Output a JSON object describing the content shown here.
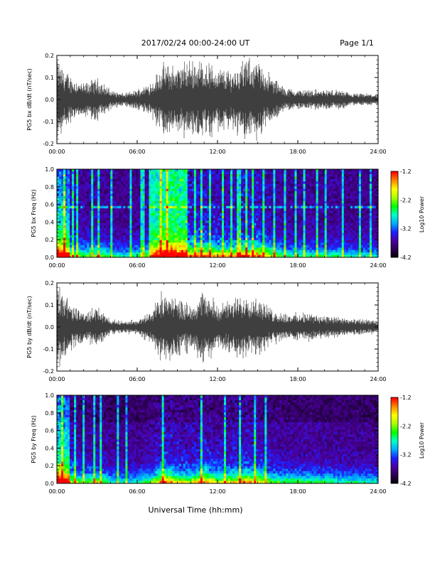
{
  "header": {
    "title": "2017/02/24  00:00-24:00 UT",
    "page": "Page 1/1"
  },
  "footer": {
    "xlabel": "Universal Time (hh:mm)"
  },
  "colorbar": {
    "title": "Log10 Power",
    "ticks": [
      "-1.2",
      "-2.2",
      "-3.2",
      "-4.2"
    ],
    "range": [
      -4.2,
      -1.2
    ],
    "colors": [
      "#000000",
      "#2a0050",
      "#4b00a0",
      "#1e1eff",
      "#00aaff",
      "#00ffc8",
      "#00ff00",
      "#aaff00",
      "#ffff00",
      "#ff8800",
      "#ff0000"
    ]
  },
  "chart_data": [
    {
      "type": "line",
      "ylabel": "PG5 bx dB/dt (nT/sec)",
      "x_ticks": [
        "00:00",
        "06:00",
        "12:00",
        "18:00",
        "24:00"
      ],
      "xlim": [
        0,
        24
      ],
      "ylim": [
        -0.2,
        0.2
      ],
      "y_ticks": [
        "0.2",
        "0.1",
        "0.0",
        "-0.1",
        "-0.2"
      ],
      "series": [
        {
          "x": [
            0,
            1,
            2,
            3,
            4,
            5,
            6,
            7,
            8,
            9,
            10,
            11,
            12,
            13,
            14,
            15,
            16,
            17,
            18,
            19,
            20,
            21,
            22,
            23,
            24
          ],
          "values": [
            0.2,
            0.12,
            0.08,
            0.11,
            0.05,
            0.03,
            0.05,
            0.09,
            0.18,
            0.17,
            0.2,
            0.2,
            0.16,
            0.15,
            0.2,
            0.2,
            0.12,
            0.06,
            0.05,
            0.05,
            0.05,
            0.05,
            0.03,
            0.03,
            0.03
          ]
        }
      ]
    },
    {
      "type": "heatmap",
      "ylabel": "PG5 bx Freq (Hz)",
      "x_ticks": [
        "00:00",
        "06:00",
        "12:00",
        "18:00",
        "24:00"
      ],
      "xlim": [
        0,
        24
      ],
      "ylim": [
        0,
        1.0
      ],
      "y_ticks": [
        "1.0",
        "0.8",
        "0.6",
        "0.4",
        "0.2",
        "0.0"
      ],
      "colorbar": "Log10 Power"
    },
    {
      "type": "line",
      "ylabel": "PG5 by dB/dt (nT/sec)",
      "x_ticks": [
        "00:00",
        "06:00",
        "12:00",
        "18:00",
        "24:00"
      ],
      "xlim": [
        0,
        24
      ],
      "ylim": [
        -0.2,
        0.2
      ],
      "y_ticks": [
        "0.2",
        "0.1",
        "0.0",
        "-0.1",
        "-0.2"
      ],
      "series": [
        {
          "x": [
            0,
            1,
            2,
            3,
            4,
            5,
            6,
            7,
            8,
            9,
            10,
            11,
            12,
            13,
            14,
            15,
            16,
            17,
            18,
            19,
            20,
            21,
            22,
            23,
            24
          ],
          "values": [
            0.2,
            0.13,
            0.07,
            0.11,
            0.04,
            0.03,
            0.04,
            0.08,
            0.2,
            0.14,
            0.12,
            0.18,
            0.12,
            0.13,
            0.18,
            0.15,
            0.09,
            0.07,
            0.07,
            0.07,
            0.06,
            0.05,
            0.04,
            0.04,
            0.03
          ]
        }
      ]
    },
    {
      "type": "heatmap",
      "ylabel": "PG5 by Freq (Hz)",
      "x_ticks": [
        "00:00",
        "06:00",
        "12:00",
        "18:00",
        "24:00"
      ],
      "xlim": [
        0,
        24
      ],
      "ylim": [
        0,
        1.0
      ],
      "y_ticks": [
        "1.0",
        "0.8",
        "0.6",
        "0.4",
        "0.2",
        "0.0"
      ],
      "colorbar": "Log10 Power"
    }
  ]
}
